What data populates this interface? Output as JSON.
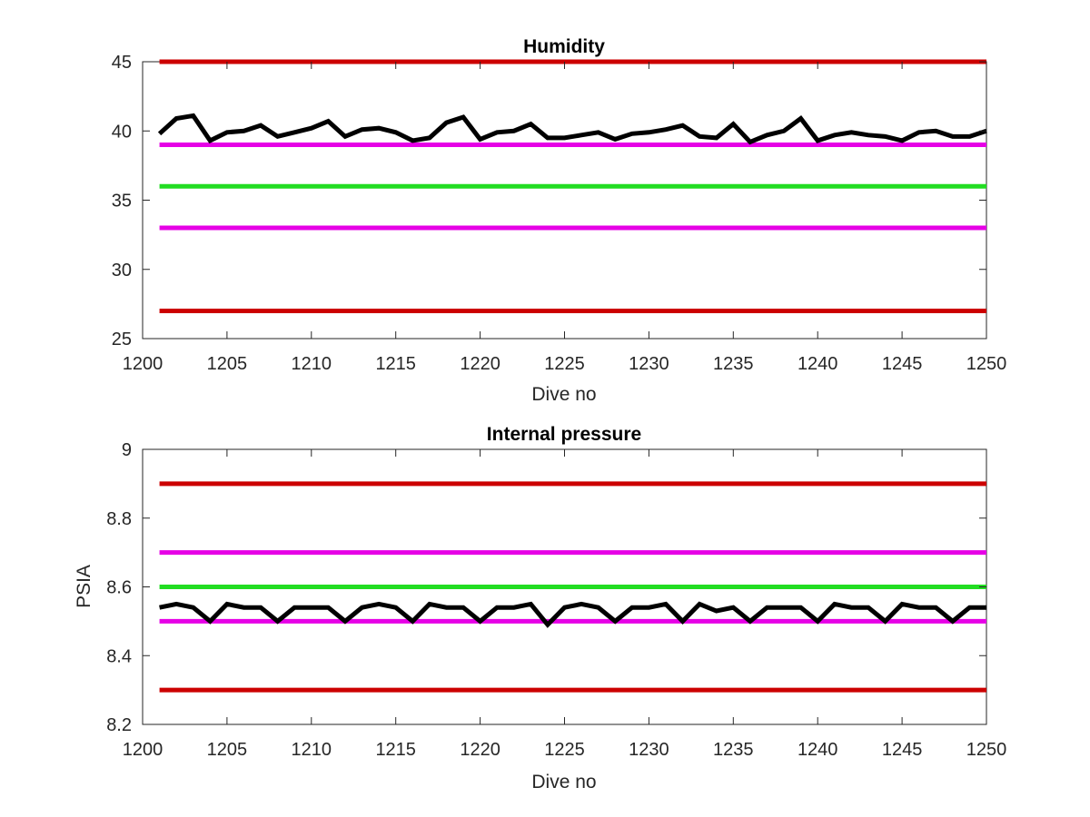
{
  "chart_data": [
    {
      "type": "line",
      "title": "Humidity",
      "xlabel": "Dive no",
      "ylabel": "",
      "xlim": [
        1200,
        1250
      ],
      "ylim": [
        25,
        45
      ],
      "xticks": [
        1200,
        1205,
        1210,
        1215,
        1220,
        1225,
        1230,
        1235,
        1240,
        1245,
        1250
      ],
      "yticks": [
        25,
        30,
        35,
        40,
        45
      ],
      "grid": false,
      "reference_lines": [
        {
          "y": 45,
          "color": "#cc0000"
        },
        {
          "y": 39,
          "color": "#e600e6"
        },
        {
          "y": 36,
          "color": "#22dd22"
        },
        {
          "y": 33,
          "color": "#e600e6"
        },
        {
          "y": 27,
          "color": "#cc0000"
        }
      ],
      "series": [
        {
          "color": "#000000",
          "x": [
            1201,
            1202,
            1203,
            1204,
            1205,
            1206,
            1207,
            1208,
            1209,
            1210,
            1211,
            1212,
            1213,
            1214,
            1215,
            1216,
            1217,
            1218,
            1219,
            1220,
            1221,
            1222,
            1223,
            1224,
            1225,
            1226,
            1227,
            1228,
            1229,
            1230,
            1231,
            1232,
            1233,
            1234,
            1235,
            1236,
            1237,
            1238,
            1239,
            1240,
            1241,
            1242,
            1243,
            1244,
            1245,
            1246,
            1247,
            1248,
            1249,
            1250
          ],
          "values": [
            39.8,
            40.9,
            41.1,
            39.3,
            39.9,
            40.0,
            40.4,
            39.6,
            39.9,
            40.2,
            40.7,
            39.6,
            40.1,
            40.2,
            39.9,
            39.3,
            39.5,
            40.6,
            41.0,
            39.4,
            39.9,
            40.0,
            40.5,
            39.5,
            39.5,
            39.7,
            39.9,
            39.4,
            39.8,
            39.9,
            40.1,
            40.4,
            39.6,
            39.5,
            40.5,
            39.2,
            39.7,
            40.0,
            40.9,
            39.3,
            39.7,
            39.9,
            39.7,
            39.6,
            39.3,
            39.9,
            40.0,
            39.6,
            39.6,
            40.0
          ]
        }
      ]
    },
    {
      "type": "line",
      "title": "Internal pressure",
      "xlabel": "Dive no",
      "ylabel": "PSIA",
      "xlim": [
        1200,
        1250
      ],
      "ylim": [
        8.2,
        9
      ],
      "xticks": [
        1200,
        1205,
        1210,
        1215,
        1220,
        1225,
        1230,
        1235,
        1240,
        1245,
        1250
      ],
      "yticks": [
        "8.2",
        "8.4",
        "8.6",
        "8.8",
        "9"
      ],
      "grid": false,
      "reference_lines": [
        {
          "y": 8.9,
          "color": "#cc0000"
        },
        {
          "y": 8.7,
          "color": "#e600e6"
        },
        {
          "y": 8.6,
          "color": "#22dd22"
        },
        {
          "y": 8.5,
          "color": "#e600e6"
        },
        {
          "y": 8.3,
          "color": "#cc0000"
        }
      ],
      "series": [
        {
          "color": "#000000",
          "x": [
            1201,
            1202,
            1203,
            1204,
            1205,
            1206,
            1207,
            1208,
            1209,
            1210,
            1211,
            1212,
            1213,
            1214,
            1215,
            1216,
            1217,
            1218,
            1219,
            1220,
            1221,
            1222,
            1223,
            1224,
            1225,
            1226,
            1227,
            1228,
            1229,
            1230,
            1231,
            1232,
            1233,
            1234,
            1235,
            1236,
            1237,
            1238,
            1239,
            1240,
            1241,
            1242,
            1243,
            1244,
            1245,
            1246,
            1247,
            1248,
            1249,
            1250
          ],
          "values": [
            8.54,
            8.55,
            8.54,
            8.5,
            8.55,
            8.54,
            8.54,
            8.5,
            8.54,
            8.54,
            8.54,
            8.5,
            8.54,
            8.55,
            8.54,
            8.5,
            8.55,
            8.54,
            8.54,
            8.5,
            8.54,
            8.54,
            8.55,
            8.49,
            8.54,
            8.55,
            8.54,
            8.5,
            8.54,
            8.54,
            8.55,
            8.5,
            8.55,
            8.53,
            8.54,
            8.5,
            8.54,
            8.54,
            8.54,
            8.5,
            8.55,
            8.54,
            8.54,
            8.5,
            8.55,
            8.54,
            8.54,
            8.5,
            8.54,
            8.54
          ]
        }
      ]
    }
  ]
}
